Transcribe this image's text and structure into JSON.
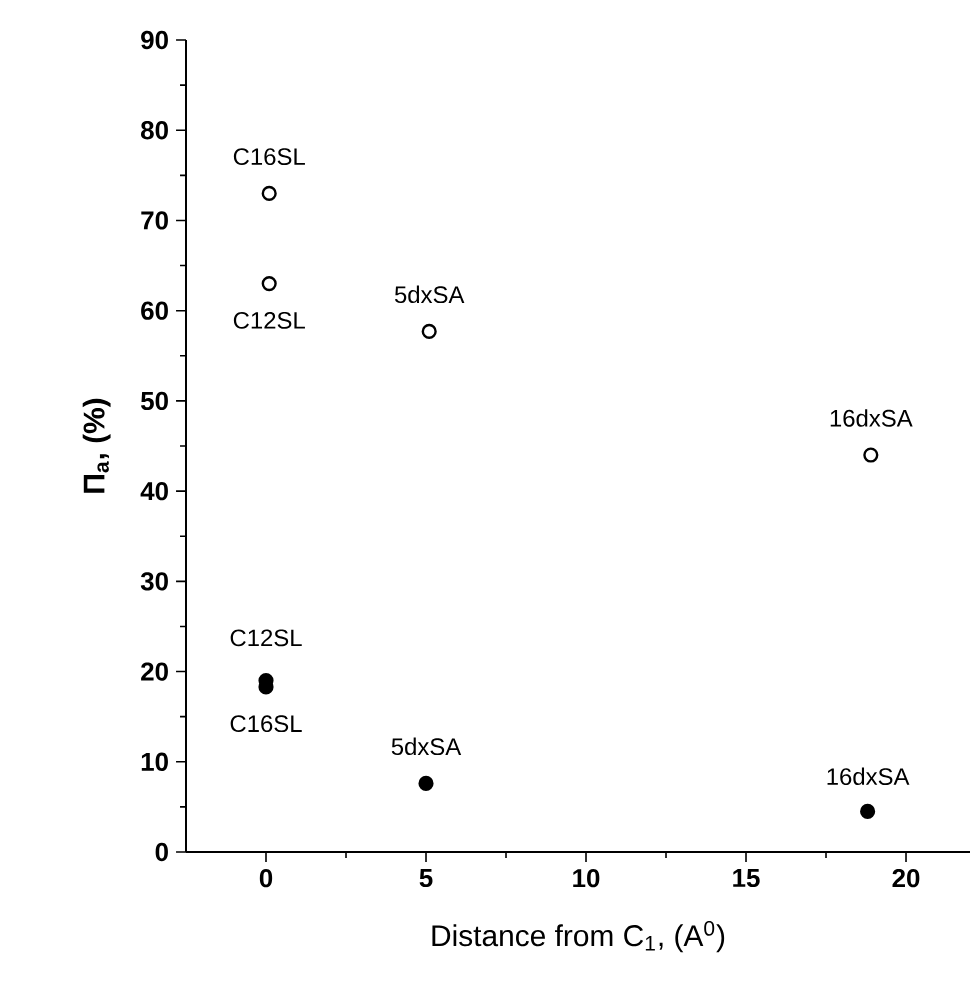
{
  "chart_data": {
    "type": "scatter",
    "xlabel": "Distance from C$_{1}$, (A$^{0}$)",
    "ylabel": "Π$_{a}$, (%)",
    "xlim": [
      -2.5,
      22
    ],
    "ylim": [
      0,
      90
    ],
    "xticks": [
      0,
      5,
      10,
      15,
      20
    ],
    "yticks": [
      0,
      10,
      20,
      30,
      40,
      50,
      60,
      70,
      80,
      90
    ],
    "marker": "circle",
    "series": [
      {
        "color": "#000000",
        "x": [
          0.1,
          0.1,
          5.1,
          18.9
        ],
        "values": [
          73,
          63,
          57.7,
          44
        ]
      },
      {
        "color": "#000000",
        "x": [
          0,
          0,
          5,
          18.8
        ],
        "values": [
          19,
          18.3,
          7.6,
          4.5
        ]
      }
    ],
    "annotations": [
      {
        "text": "C16SL",
        "x": 0.1,
        "y": 73
      },
      {
        "text": "C12SL",
        "x": 0.1,
        "y": 63
      },
      {
        "text": "5dxSA",
        "x": 5.1,
        "y": 57.7
      },
      {
        "text": "16dxSA",
        "x": 18.9,
        "y": 44
      },
      {
        "text": "C12SL",
        "x": 0,
        "y": 19
      },
      {
        "text": "C16SL",
        "x": 0,
        "y": 18.3
      },
      {
        "text": "5dxSA",
        "x": 5,
        "y": 7.6
      },
      {
        "text": "16dxSA",
        "x": 18.8,
        "y": 4.5
      }
    ]
  }
}
